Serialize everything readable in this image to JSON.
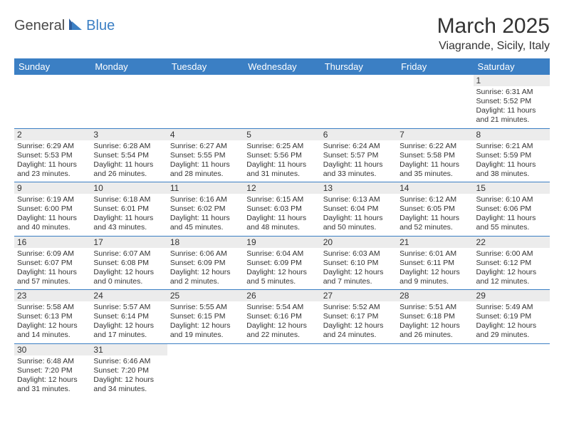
{
  "logo": {
    "part1": "General",
    "part2": "Blue"
  },
  "title": "March 2025",
  "location": "Viagrande, Sicily, Italy",
  "colors": {
    "header_bg": "#3b7fc4",
    "header_text": "#ffffff",
    "daynum_bg": "#ececec",
    "text": "#333333",
    "row_border": "#3b7fc4"
  },
  "weekdays": [
    "Sunday",
    "Monday",
    "Tuesday",
    "Wednesday",
    "Thursday",
    "Friday",
    "Saturday"
  ],
  "weeks": [
    [
      null,
      null,
      null,
      null,
      null,
      null,
      {
        "n": "1",
        "sr": "Sunrise: 6:31 AM",
        "ss": "Sunset: 5:52 PM",
        "dl": "Daylight: 11 hours and 21 minutes."
      }
    ],
    [
      {
        "n": "2",
        "sr": "Sunrise: 6:29 AM",
        "ss": "Sunset: 5:53 PM",
        "dl": "Daylight: 11 hours and 23 minutes."
      },
      {
        "n": "3",
        "sr": "Sunrise: 6:28 AM",
        "ss": "Sunset: 5:54 PM",
        "dl": "Daylight: 11 hours and 26 minutes."
      },
      {
        "n": "4",
        "sr": "Sunrise: 6:27 AM",
        "ss": "Sunset: 5:55 PM",
        "dl": "Daylight: 11 hours and 28 minutes."
      },
      {
        "n": "5",
        "sr": "Sunrise: 6:25 AM",
        "ss": "Sunset: 5:56 PM",
        "dl": "Daylight: 11 hours and 31 minutes."
      },
      {
        "n": "6",
        "sr": "Sunrise: 6:24 AM",
        "ss": "Sunset: 5:57 PM",
        "dl": "Daylight: 11 hours and 33 minutes."
      },
      {
        "n": "7",
        "sr": "Sunrise: 6:22 AM",
        "ss": "Sunset: 5:58 PM",
        "dl": "Daylight: 11 hours and 35 minutes."
      },
      {
        "n": "8",
        "sr": "Sunrise: 6:21 AM",
        "ss": "Sunset: 5:59 PM",
        "dl": "Daylight: 11 hours and 38 minutes."
      }
    ],
    [
      {
        "n": "9",
        "sr": "Sunrise: 6:19 AM",
        "ss": "Sunset: 6:00 PM",
        "dl": "Daylight: 11 hours and 40 minutes."
      },
      {
        "n": "10",
        "sr": "Sunrise: 6:18 AM",
        "ss": "Sunset: 6:01 PM",
        "dl": "Daylight: 11 hours and 43 minutes."
      },
      {
        "n": "11",
        "sr": "Sunrise: 6:16 AM",
        "ss": "Sunset: 6:02 PM",
        "dl": "Daylight: 11 hours and 45 minutes."
      },
      {
        "n": "12",
        "sr": "Sunrise: 6:15 AM",
        "ss": "Sunset: 6:03 PM",
        "dl": "Daylight: 11 hours and 48 minutes."
      },
      {
        "n": "13",
        "sr": "Sunrise: 6:13 AM",
        "ss": "Sunset: 6:04 PM",
        "dl": "Daylight: 11 hours and 50 minutes."
      },
      {
        "n": "14",
        "sr": "Sunrise: 6:12 AM",
        "ss": "Sunset: 6:05 PM",
        "dl": "Daylight: 11 hours and 52 minutes."
      },
      {
        "n": "15",
        "sr": "Sunrise: 6:10 AM",
        "ss": "Sunset: 6:06 PM",
        "dl": "Daylight: 11 hours and 55 minutes."
      }
    ],
    [
      {
        "n": "16",
        "sr": "Sunrise: 6:09 AM",
        "ss": "Sunset: 6:07 PM",
        "dl": "Daylight: 11 hours and 57 minutes."
      },
      {
        "n": "17",
        "sr": "Sunrise: 6:07 AM",
        "ss": "Sunset: 6:08 PM",
        "dl": "Daylight: 12 hours and 0 minutes."
      },
      {
        "n": "18",
        "sr": "Sunrise: 6:06 AM",
        "ss": "Sunset: 6:09 PM",
        "dl": "Daylight: 12 hours and 2 minutes."
      },
      {
        "n": "19",
        "sr": "Sunrise: 6:04 AM",
        "ss": "Sunset: 6:09 PM",
        "dl": "Daylight: 12 hours and 5 minutes."
      },
      {
        "n": "20",
        "sr": "Sunrise: 6:03 AM",
        "ss": "Sunset: 6:10 PM",
        "dl": "Daylight: 12 hours and 7 minutes."
      },
      {
        "n": "21",
        "sr": "Sunrise: 6:01 AM",
        "ss": "Sunset: 6:11 PM",
        "dl": "Daylight: 12 hours and 9 minutes."
      },
      {
        "n": "22",
        "sr": "Sunrise: 6:00 AM",
        "ss": "Sunset: 6:12 PM",
        "dl": "Daylight: 12 hours and 12 minutes."
      }
    ],
    [
      {
        "n": "23",
        "sr": "Sunrise: 5:58 AM",
        "ss": "Sunset: 6:13 PM",
        "dl": "Daylight: 12 hours and 14 minutes."
      },
      {
        "n": "24",
        "sr": "Sunrise: 5:57 AM",
        "ss": "Sunset: 6:14 PM",
        "dl": "Daylight: 12 hours and 17 minutes."
      },
      {
        "n": "25",
        "sr": "Sunrise: 5:55 AM",
        "ss": "Sunset: 6:15 PM",
        "dl": "Daylight: 12 hours and 19 minutes."
      },
      {
        "n": "26",
        "sr": "Sunrise: 5:54 AM",
        "ss": "Sunset: 6:16 PM",
        "dl": "Daylight: 12 hours and 22 minutes."
      },
      {
        "n": "27",
        "sr": "Sunrise: 5:52 AM",
        "ss": "Sunset: 6:17 PM",
        "dl": "Daylight: 12 hours and 24 minutes."
      },
      {
        "n": "28",
        "sr": "Sunrise: 5:51 AM",
        "ss": "Sunset: 6:18 PM",
        "dl": "Daylight: 12 hours and 26 minutes."
      },
      {
        "n": "29",
        "sr": "Sunrise: 5:49 AM",
        "ss": "Sunset: 6:19 PM",
        "dl": "Daylight: 12 hours and 29 minutes."
      }
    ],
    [
      {
        "n": "30",
        "sr": "Sunrise: 6:48 AM",
        "ss": "Sunset: 7:20 PM",
        "dl": "Daylight: 12 hours and 31 minutes."
      },
      {
        "n": "31",
        "sr": "Sunrise: 6:46 AM",
        "ss": "Sunset: 7:20 PM",
        "dl": "Daylight: 12 hours and 34 minutes."
      },
      null,
      null,
      null,
      null,
      null
    ]
  ]
}
